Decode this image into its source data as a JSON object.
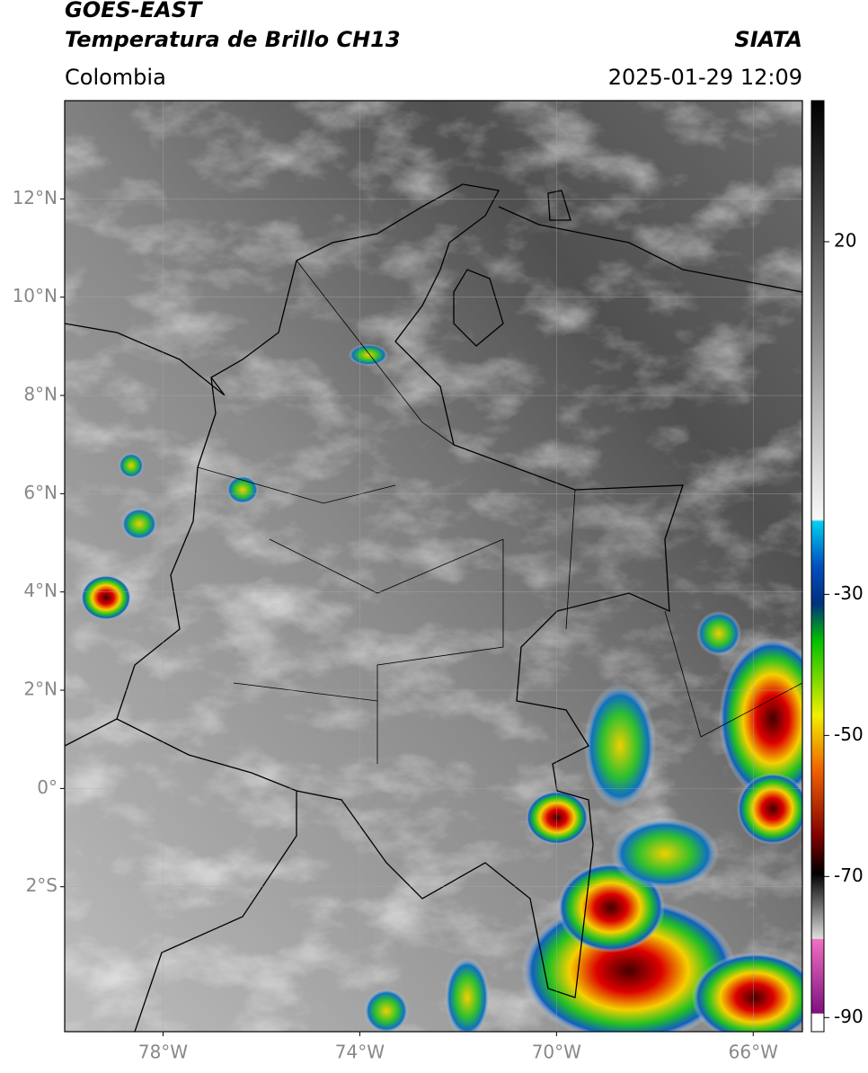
{
  "header": {
    "title_line1": "GOES-EAST",
    "title_line2": "Temperatura de Brillo CH13",
    "source": "SIATA",
    "region": "Colombia",
    "datetime": "2025-01-29 12:09"
  },
  "map": {
    "xlim": [
      -80,
      -65
    ],
    "ylim": [
      -4.95,
      14
    ],
    "xticks": [
      {
        "value": -78,
        "label": "78°W"
      },
      {
        "value": -74,
        "label": "74°W"
      },
      {
        "value": -70,
        "label": "70°W"
      },
      {
        "value": -66,
        "label": "66°W"
      }
    ],
    "yticks": [
      {
        "value": 12,
        "label": "12°N"
      },
      {
        "value": 10,
        "label": "10°N"
      },
      {
        "value": 8,
        "label": "8°N"
      },
      {
        "value": 6,
        "label": "6°N"
      },
      {
        "value": 4,
        "label": "4°N"
      },
      {
        "value": 2,
        "label": "2°N"
      },
      {
        "value": 0,
        "label": "0°"
      },
      {
        "value": -2,
        "label": "2°S"
      }
    ]
  },
  "colorbar": {
    "lim": [
      40,
      -92
    ],
    "ticks": [
      20,
      -30,
      -50,
      -70,
      -90
    ]
  }
}
